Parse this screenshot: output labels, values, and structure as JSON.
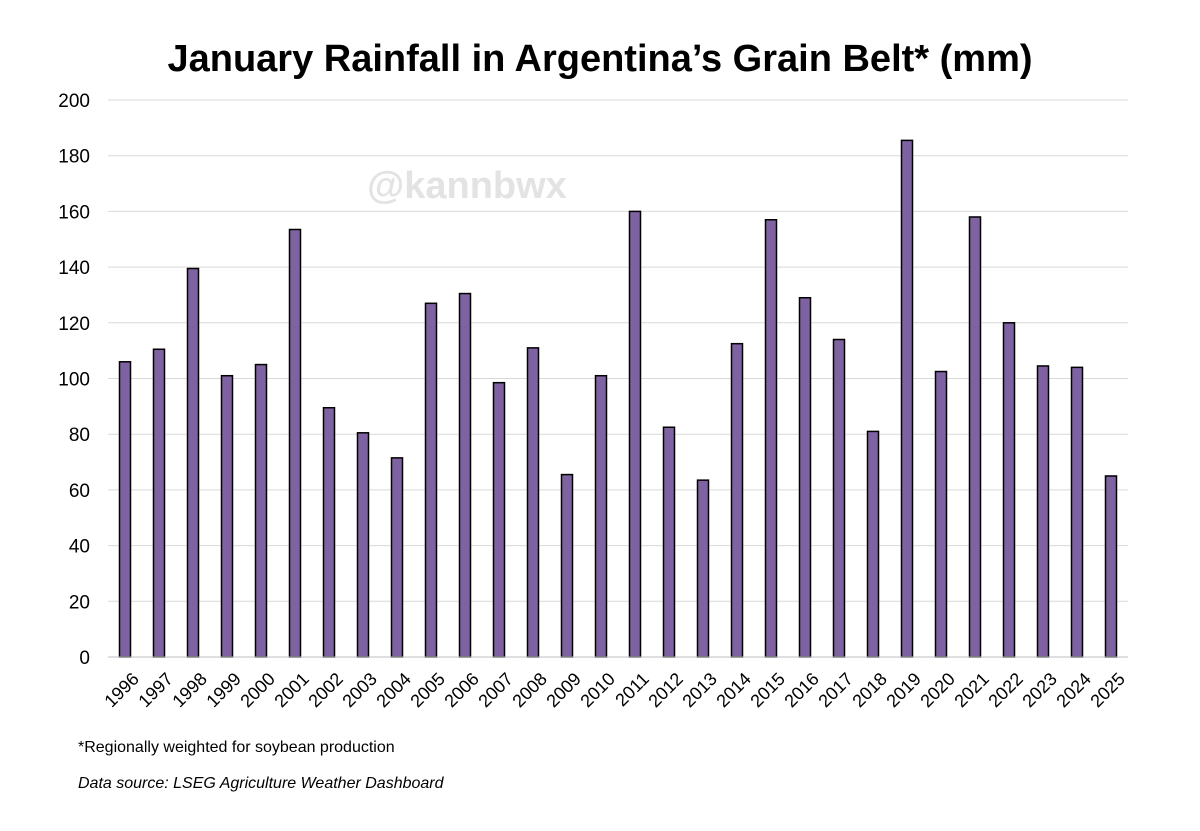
{
  "chart_data": {
    "type": "bar",
    "title": "January Rainfall in Argentina’s Grain Belt* (mm)",
    "xlabel": "",
    "ylabel": "",
    "ylim": [
      0,
      200
    ],
    "yticks": [
      0,
      20,
      40,
      60,
      80,
      100,
      120,
      140,
      160,
      180,
      200
    ],
    "grid": true,
    "watermark": "@kannbwx",
    "bar_color": "#7f62a1",
    "categories": [
      "1996",
      "1997",
      "1998",
      "1999",
      "2000",
      "2001",
      "2002",
      "2003",
      "2004",
      "2005",
      "2006",
      "2007",
      "2008",
      "2009",
      "2010",
      "2011",
      "2012",
      "2013",
      "2014",
      "2015",
      "2016",
      "2017",
      "2018",
      "2019",
      "2020",
      "2021",
      "2022",
      "2023",
      "2024",
      "2025"
    ],
    "values": [
      106,
      110.5,
      139.5,
      101,
      105,
      153.5,
      89.5,
      80.5,
      71.5,
      127,
      130.5,
      98.5,
      111,
      65.5,
      101,
      160,
      82.5,
      63.5,
      112.5,
      157,
      129,
      114,
      81,
      185.5,
      102.5,
      158,
      120,
      104.5,
      104,
      65
    ]
  },
  "footnote": "*Regionally weighted for soybean production",
  "source": "Data source: LSEG Agriculture Weather Dashboard"
}
